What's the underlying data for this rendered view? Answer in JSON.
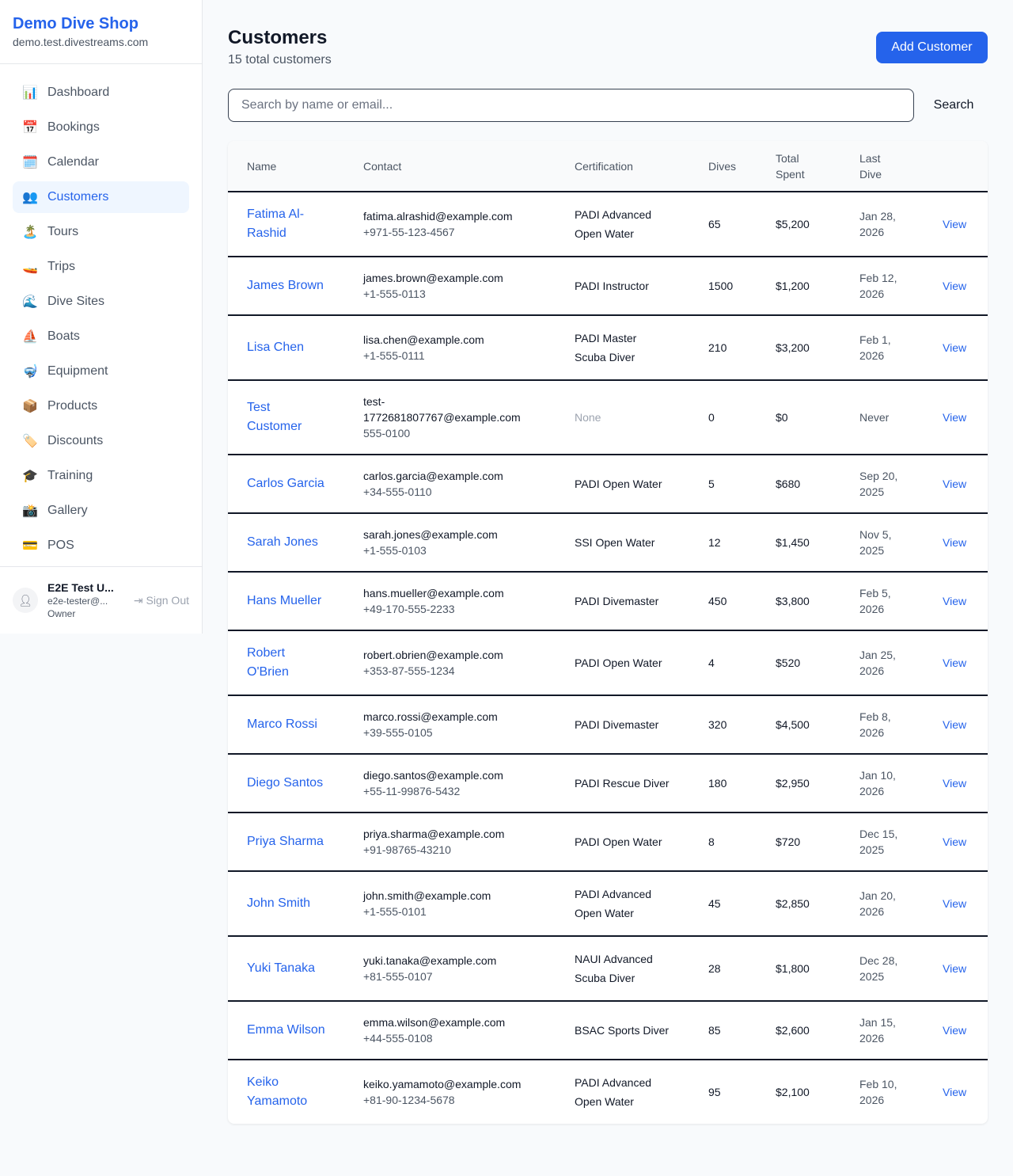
{
  "sidebar": {
    "brand": "Demo Dive Shop",
    "url": "demo.test.divestreams.com",
    "items": [
      {
        "label": "Dashboard",
        "icon": "📊",
        "name": "dashboard"
      },
      {
        "label": "Bookings",
        "icon": "📅",
        "name": "bookings"
      },
      {
        "label": "Calendar",
        "icon": "🗓️",
        "name": "calendar"
      },
      {
        "label": "Customers",
        "icon": "👥",
        "name": "customers",
        "active": true
      },
      {
        "label": "Tours",
        "icon": "🏝️",
        "name": "tours"
      },
      {
        "label": "Trips",
        "icon": "🚤",
        "name": "trips"
      },
      {
        "label": "Dive Sites",
        "icon": "🌊",
        "name": "dive-sites"
      },
      {
        "label": "Boats",
        "icon": "⛵",
        "name": "boats"
      },
      {
        "label": "Equipment",
        "icon": "🤿",
        "name": "equipment"
      },
      {
        "label": "Products",
        "icon": "📦",
        "name": "products"
      },
      {
        "label": "Discounts",
        "icon": "🏷️",
        "name": "discounts"
      },
      {
        "label": "Training",
        "icon": "🎓",
        "name": "training"
      },
      {
        "label": "Gallery",
        "icon": "📸",
        "name": "gallery"
      },
      {
        "label": "POS",
        "icon": "💳",
        "name": "pos"
      }
    ],
    "user": {
      "name": "E2E Test U...",
      "email": "e2e-tester@...",
      "role": "Owner",
      "sign_out": "Sign Out"
    }
  },
  "header": {
    "title": "Customers",
    "subtitle": "15 total customers",
    "add_label": "Add Customer"
  },
  "search": {
    "placeholder": "Search by name or email...",
    "button": "Search"
  },
  "table": {
    "columns": [
      "Name",
      "Contact",
      "Certification",
      "Dives",
      "Total\nSpent",
      "Last\nDive"
    ],
    "view_label": "View",
    "rows": [
      {
        "name": "Fatima Al-Rashid",
        "email": "fatima.alrashid@example.com",
        "phone": "+971-55-123-4567",
        "cert": "PADI Advanced Open Water",
        "dives": "65",
        "spent": "$5,200",
        "last": "Jan 28, 2026"
      },
      {
        "name": "James Brown",
        "email": "james.brown@example.com",
        "phone": "+1-555-0113",
        "cert": "PADI Instructor",
        "dives": "1500",
        "spent": "$1,200",
        "last": "Feb 12, 2026"
      },
      {
        "name": "Lisa Chen",
        "email": "lisa.chen@example.com",
        "phone": "+1-555-0111",
        "cert": "PADI Master Scuba Diver",
        "dives": "210",
        "spent": "$3,200",
        "last": "Feb 1, 2026"
      },
      {
        "name": "Test Customer",
        "email": "test-1772681807767@example.com",
        "phone": "555-0100",
        "cert": "None",
        "dives": "0",
        "spent": "$0",
        "last": "Never"
      },
      {
        "name": "Carlos Garcia",
        "email": "carlos.garcia@example.com",
        "phone": "+34-555-0110",
        "cert": "PADI Open Water",
        "dives": "5",
        "spent": "$680",
        "last": "Sep 20, 2025"
      },
      {
        "name": "Sarah Jones",
        "email": "sarah.jones@example.com",
        "phone": "+1-555-0103",
        "cert": "SSI Open Water",
        "dives": "12",
        "spent": "$1,450",
        "last": "Nov 5, 2025"
      },
      {
        "name": "Hans Mueller",
        "email": "hans.mueller@example.com",
        "phone": "+49-170-555-2233",
        "cert": "PADI Divemaster",
        "dives": "450",
        "spent": "$3,800",
        "last": "Feb 5, 2026"
      },
      {
        "name": "Robert O'Brien",
        "email": "robert.obrien@example.com",
        "phone": "+353-87-555-1234",
        "cert": "PADI Open Water",
        "dives": "4",
        "spent": "$520",
        "last": "Jan 25, 2026"
      },
      {
        "name": "Marco Rossi",
        "email": "marco.rossi@example.com",
        "phone": "+39-555-0105",
        "cert": "PADI Divemaster",
        "dives": "320",
        "spent": "$4,500",
        "last": "Feb 8, 2026"
      },
      {
        "name": "Diego Santos",
        "email": "diego.santos@example.com",
        "phone": "+55-11-99876-5432",
        "cert": "PADI Rescue Diver",
        "dives": "180",
        "spent": "$2,950",
        "last": "Jan 10, 2026"
      },
      {
        "name": "Priya Sharma",
        "email": "priya.sharma@example.com",
        "phone": "+91-98765-43210",
        "cert": "PADI Open Water",
        "dives": "8",
        "spent": "$720",
        "last": "Dec 15, 2025"
      },
      {
        "name": "John Smith",
        "email": "john.smith@example.com",
        "phone": "+1-555-0101",
        "cert": "PADI Advanced Open Water",
        "dives": "45",
        "spent": "$2,850",
        "last": "Jan 20, 2026"
      },
      {
        "name": "Yuki Tanaka",
        "email": "yuki.tanaka@example.com",
        "phone": "+81-555-0107",
        "cert": "NAUI Advanced Scuba Diver",
        "dives": "28",
        "spent": "$1,800",
        "last": "Dec 28, 2025"
      },
      {
        "name": "Emma Wilson",
        "email": "emma.wilson@example.com",
        "phone": "+44-555-0108",
        "cert": "BSAC Sports Diver",
        "dives": "85",
        "spent": "$2,600",
        "last": "Jan 15, 2026"
      },
      {
        "name": "Keiko Yamamoto",
        "email": "keiko.yamamoto@example.com",
        "phone": "+81-90-1234-5678",
        "cert": "PADI Advanced Open Water",
        "dives": "95",
        "spent": "$2,100",
        "last": "Feb 10, 2026"
      }
    ]
  },
  "colors": {
    "accent": "#2563eb",
    "active_bg": "#eff6ff"
  }
}
